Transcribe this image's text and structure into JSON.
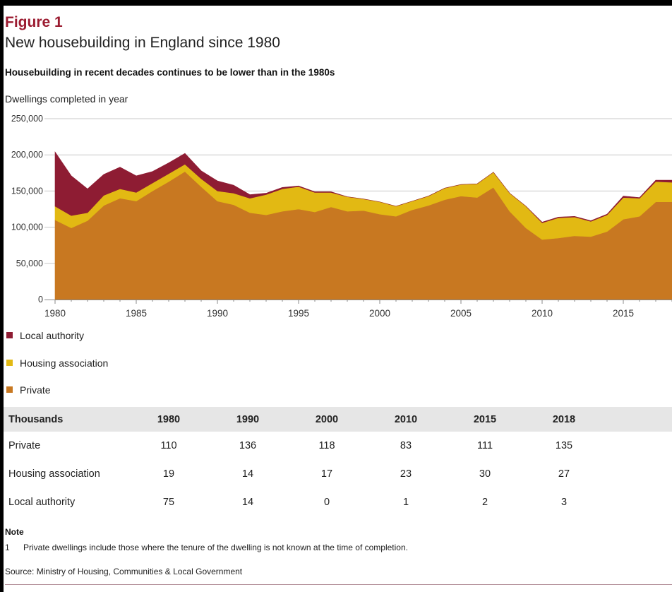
{
  "figure": {
    "number": "Figure 1",
    "title": "New housebuilding in England since 1980",
    "subtitle": "Housebuilding in recent decades continues to be lower than in the 1980s"
  },
  "chart_data": {
    "type": "area",
    "stacked": true,
    "ylabel": "Dwellings completed in year",
    "ylim": [
      0,
      250000
    ],
    "yticks": [
      0,
      50000,
      100000,
      150000,
      200000,
      250000
    ],
    "ytick_labels": [
      "0",
      "50,000",
      "100,000",
      "150,000",
      "200,000",
      "250,000"
    ],
    "xlim": [
      1980,
      2018
    ],
    "xticks": [
      1980,
      1985,
      1990,
      1995,
      2000,
      2005,
      2010,
      2015
    ],
    "grid": true,
    "x": [
      1980,
      1981,
      1982,
      1983,
      1984,
      1985,
      1986,
      1987,
      1988,
      1989,
      1990,
      1991,
      1992,
      1993,
      1994,
      1995,
      1996,
      1997,
      1998,
      1999,
      2000,
      2001,
      2002,
      2003,
      2004,
      2005,
      2006,
      2007,
      2008,
      2009,
      2010,
      2011,
      2012,
      2013,
      2014,
      2015,
      2016,
      2017,
      2018
    ],
    "series": [
      {
        "name": "Private",
        "color": "#c87821",
        "values": [
          110000,
          99000,
          109000,
          130000,
          140000,
          136000,
          150000,
          163000,
          177000,
          156000,
          136000,
          131000,
          120000,
          117000,
          122000,
          125000,
          121000,
          128000,
          122000,
          123000,
          118000,
          115000,
          124000,
          130000,
          138000,
          143000,
          141000,
          155000,
          122000,
          99000,
          83000,
          85000,
          88000,
          87000,
          94000,
          111000,
          115000,
          135000,
          135000
        ]
      },
      {
        "name": "Housing association",
        "color": "#e2b913",
        "values": [
          19000,
          17000,
          11000,
          14000,
          13000,
          12000,
          11000,
          11000,
          10000,
          11000,
          14000,
          16000,
          20000,
          28000,
          31000,
          31000,
          27000,
          20000,
          20000,
          16000,
          17000,
          14000,
          12000,
          13000,
          16000,
          16000,
          19000,
          21000,
          25000,
          30000,
          23000,
          28000,
          26000,
          21000,
          23000,
          30000,
          25000,
          28000,
          27000
        ]
      },
      {
        "name": "Local authority",
        "color": "#8e1c33",
        "values": [
          75000,
          55000,
          33000,
          29000,
          30000,
          23000,
          16000,
          15000,
          15000,
          11000,
          14000,
          11000,
          5000,
          2000,
          2000,
          1000,
          1000,
          1000,
          0,
          0,
          0,
          0,
          0,
          0,
          0,
          0,
          0,
          0,
          0,
          0,
          1000,
          1000,
          1000,
          1000,
          1000,
          2000,
          1000,
          2000,
          3000
        ]
      }
    ],
    "legend_position": "bottom-left"
  },
  "legend": [
    {
      "label": "Local authority",
      "color": "#8e1c33"
    },
    {
      "label": "Housing association",
      "color": "#e2b913"
    },
    {
      "label": "Private",
      "color": "#c87821"
    }
  ],
  "table": {
    "header": "Thousands",
    "years": [
      "1980",
      "1990",
      "2000",
      "2010",
      "2015",
      "2018"
    ],
    "rows": [
      {
        "label": "Private",
        "values": [
          "110",
          "136",
          "118",
          "83",
          "111",
          "135"
        ]
      },
      {
        "label": "Housing association",
        "values": [
          "19",
          "14",
          "17",
          "23",
          "30",
          "27"
        ]
      },
      {
        "label": "Local authority",
        "values": [
          "75",
          "14",
          "0",
          "1",
          "2",
          "3"
        ]
      }
    ]
  },
  "note": {
    "heading": "Note",
    "number": "1",
    "text": "Private dwellings include those where the tenure of the dwelling is not known at the time of completion."
  },
  "source": "Source: Ministry of Housing, Communities & Local Government"
}
